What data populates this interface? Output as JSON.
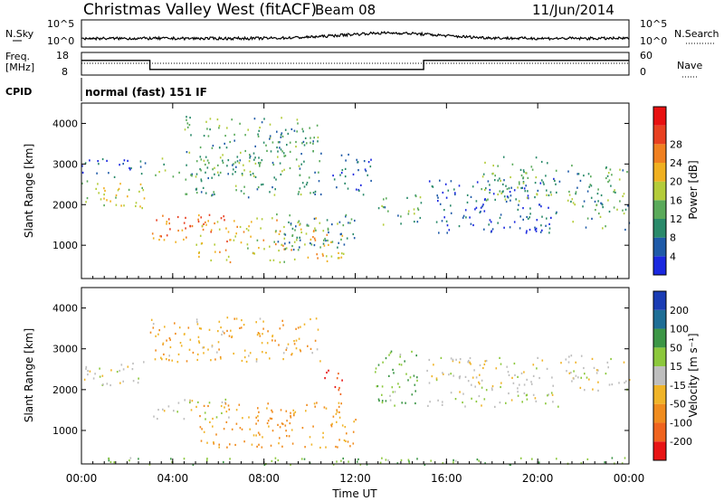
{
  "header": {
    "title": "Christmas Valley West (fitACF)",
    "beam": "Beam 08",
    "date": "11/Jun/2014"
  },
  "top_panels": {
    "nsky_label": "N.Sky",
    "nsky_ticks": [
      "10^5",
      "10^0"
    ],
    "nsearch_label": "N.Search",
    "nsearch_ticks": [
      "10^5",
      "10^0"
    ],
    "freq_label_line1": "Freq.",
    "freq_label_line2": "[MHz]",
    "freq_ticks": [
      "18",
      "8"
    ],
    "nave_label": "Nave",
    "nave_ticks": [
      "60",
      "0"
    ],
    "cpid_label": "CPID",
    "cpid_text": "normal (fast) 151 IF"
  },
  "chart_data": [
    {
      "type": "heatmap",
      "name": "power",
      "ylabel": "Slant Range [km]",
      "ylim": [
        180,
        4500
      ],
      "y_ticks": [
        1000,
        2000,
        3000,
        4000
      ],
      "xlim": [
        0,
        24
      ],
      "colorbar": {
        "label": "Power [dB]",
        "ticks": [
          "4",
          "8",
          "12",
          "16",
          "20",
          "24",
          "28"
        ],
        "colors": [
          "#1a28e0",
          "#1e5aa8",
          "#2a8a6a",
          "#5aaa5a",
          "#b4cc3a",
          "#f0b020",
          "#f08020",
          "#e84020",
          "#e81010"
        ]
      },
      "bands": [
        {
          "t0": 0.0,
          "t1": 2.9,
          "r0": 1900,
          "r1": 2600,
          "v": 18
        },
        {
          "t0": 0.0,
          "t1": 2.9,
          "r0": 2700,
          "r1": 3150,
          "v": 6
        },
        {
          "t0": 3.0,
          "t1": 6.5,
          "r0": 1100,
          "r1": 1800,
          "v": 26
        },
        {
          "t0": 3.0,
          "t1": 8.0,
          "r0": 2700,
          "r1": 3200,
          "v": 14
        },
        {
          "t0": 4.5,
          "t1": 10.5,
          "r0": 2200,
          "r1": 4200,
          "v": 12
        },
        {
          "t0": 5.0,
          "t1": 11.5,
          "r0": 600,
          "r1": 1700,
          "v": 20
        },
        {
          "t0": 8.5,
          "t1": 12.0,
          "r0": 900,
          "r1": 1800,
          "v": 10
        },
        {
          "t0": 11.0,
          "t1": 12.7,
          "r0": 2200,
          "r1": 3300,
          "v": 6
        },
        {
          "t0": 13.0,
          "t1": 14.9,
          "r0": 1500,
          "r1": 2300,
          "v": 12
        },
        {
          "t0": 15.1,
          "t1": 21.0,
          "r0": 1300,
          "r1": 2700,
          "v": 6
        },
        {
          "t0": 17.5,
          "t1": 20.8,
          "r0": 2100,
          "r1": 3200,
          "v": 14
        },
        {
          "t0": 21.2,
          "t1": 24.0,
          "r0": 1400,
          "r1": 3000,
          "v": 12
        }
      ]
    },
    {
      "type": "heatmap",
      "name": "velocity",
      "ylabel": "Slant Range [km]",
      "ylim": [
        180,
        4500
      ],
      "y_ticks": [
        1000,
        2000,
        3000,
        4000
      ],
      "xlim": [
        0,
        24
      ],
      "colorbar": {
        "label": "Velocity [m s⁻¹]",
        "ticks": [
          "200",
          "100",
          "50",
          "15",
          "-15",
          "-50",
          "-100",
          "-200"
        ],
        "colors": [
          "#1a3cb4",
          "#1e6e96",
          "#3c9646",
          "#8cc83c",
          "#bebebe",
          "#f0b428",
          "#f08c1e",
          "#f0641e",
          "#e81414"
        ]
      },
      "bands": [
        {
          "t0": 0.0,
          "t1": 2.9,
          "r0": 2100,
          "r1": 2700,
          "v": 0
        },
        {
          "t0": 3.0,
          "t1": 6.5,
          "r0": 1300,
          "r1": 1800,
          "v": 0
        },
        {
          "t0": 3.0,
          "t1": 10.5,
          "r0": 2700,
          "r1": 3800,
          "v": -40
        },
        {
          "t0": 5.0,
          "t1": 12.0,
          "r0": 600,
          "r1": 1700,
          "v": -60
        },
        {
          "t0": 10.5,
          "t1": 11.5,
          "r0": 1900,
          "r1": 2500,
          "v": -200
        },
        {
          "t0": 12.8,
          "t1": 14.8,
          "r0": 1600,
          "r1": 3000,
          "v": 40
        },
        {
          "t0": 15.1,
          "t1": 21.0,
          "r0": 1600,
          "r1": 2800,
          "v": 0
        },
        {
          "t0": 21.2,
          "t1": 24.0,
          "r0": 2000,
          "r1": 2900,
          "v": 0
        },
        {
          "t0": 0.0,
          "t1": 24.0,
          "r0": 180,
          "r1": 350,
          "v": 40
        }
      ]
    }
  ],
  "x_axis": {
    "label": "Time UT",
    "ticks": [
      "00:00",
      "04:00",
      "08:00",
      "12:00",
      "16:00",
      "20:00",
      "00:00"
    ],
    "tick_hours": [
      0,
      4,
      8,
      12,
      16,
      20,
      24
    ]
  },
  "frequency_trace": {
    "times": [
      0,
      3.0,
      3.0,
      15.0,
      15.0,
      24
    ],
    "mhz": [
      14.5,
      14.5,
      10.5,
      10.5,
      14.5,
      14.5
    ]
  }
}
